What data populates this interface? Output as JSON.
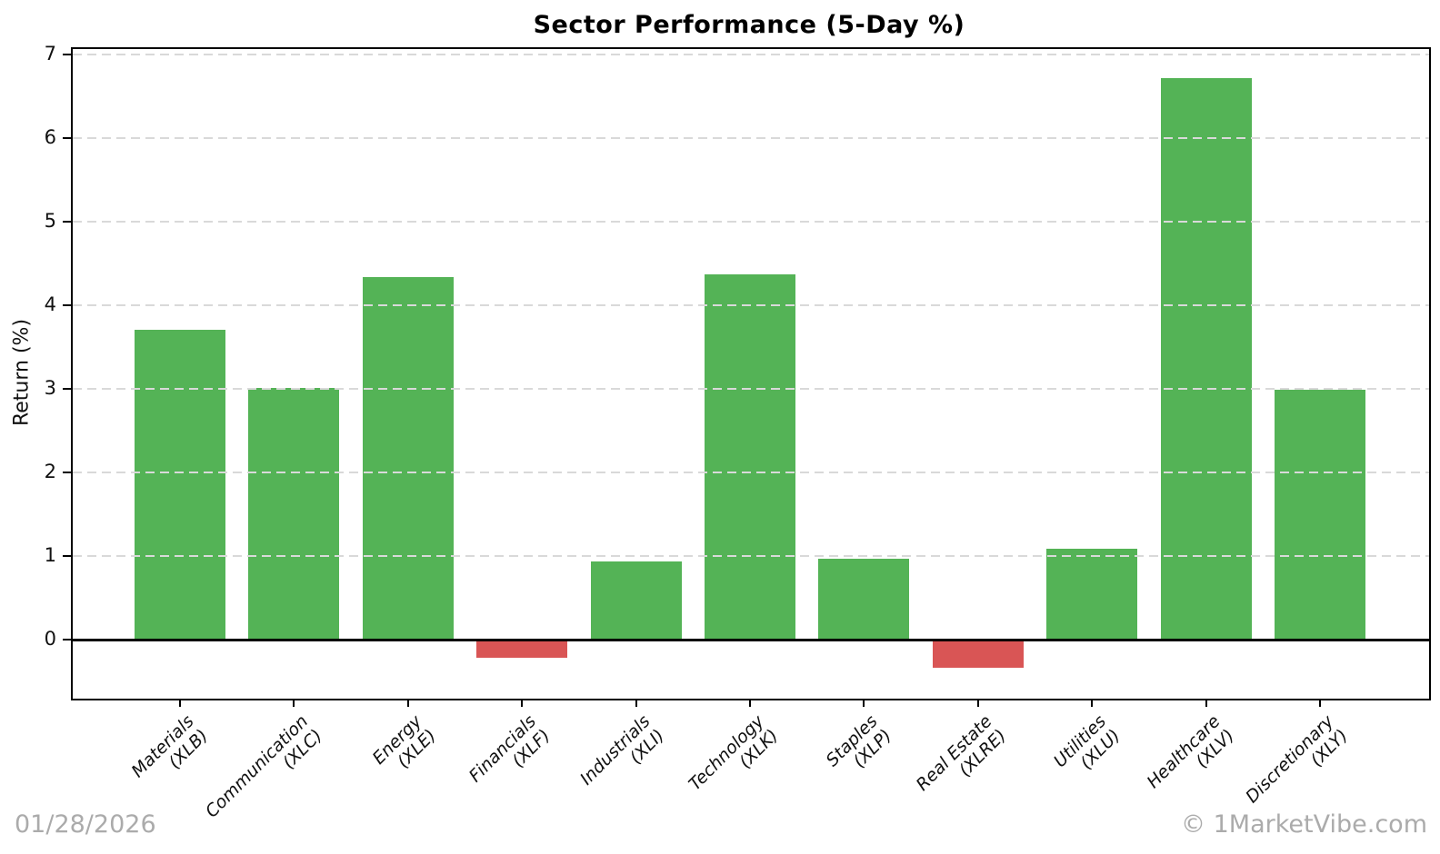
{
  "title": "Sector Performance (5-Day %)",
  "ylabel": "Return (%)",
  "watermarks": {
    "date": "01/28/2026",
    "brand": "© 1MarketVibe.com"
  },
  "colors": {
    "positive": "#54b356",
    "negative": "#d95555",
    "grid": "#d9d9d9",
    "axis": "#000000",
    "watermark": "#ababab"
  },
  "chart_data": {
    "type": "bar",
    "title": "Sector Performance (5-Day %)",
    "xlabel": "",
    "ylabel": "Return (%)",
    "categories": [
      {
        "name": "Materials",
        "ticker": "(XLB)"
      },
      {
        "name": "Communication",
        "ticker": "(XLC)"
      },
      {
        "name": "Energy",
        "ticker": "(XLE)"
      },
      {
        "name": "Financials",
        "ticker": "(XLF)"
      },
      {
        "name": "Industrials",
        "ticker": "(XLI)"
      },
      {
        "name": "Technology",
        "ticker": "(XLK)"
      },
      {
        "name": "Staples",
        "ticker": "(XLP)"
      },
      {
        "name": "Real Estate",
        "ticker": "(XLRE)"
      },
      {
        "name": "Utilities",
        "ticker": "(XLU)"
      },
      {
        "name": "Healthcare",
        "ticker": "(XLV)"
      },
      {
        "name": "Discretionary",
        "ticker": "(XLY)"
      }
    ],
    "values": [
      3.71,
      3.01,
      4.34,
      -0.22,
      0.93,
      4.37,
      0.97,
      -0.34,
      1.09,
      6.72,
      2.99
    ],
    "yticks": [
      0,
      1,
      2,
      3,
      4,
      5,
      6,
      7
    ],
    "ylim": [
      -0.71,
      7.07
    ],
    "grid": "horizontal-dashed",
    "zero_line": true,
    "legend": "none",
    "bar_color_rule": "green if value >= 0 else red"
  }
}
